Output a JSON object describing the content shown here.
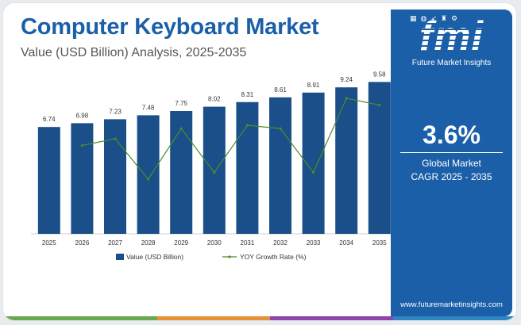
{
  "header": {
    "title": "Computer Keyboard Market",
    "subtitle": "Value (USD Billion) Analysis, 2025-2035"
  },
  "sidebar": {
    "logo_text": "fmi",
    "logo_tagline": "Future Market Insights",
    "cagr_value": "3.6%",
    "cagr_label_line1": "Global Market",
    "cagr_label_line2": "CAGR 2025 - 2035",
    "website": "www.futuremarketinsights.com"
  },
  "colors": {
    "brand": "#1a5fa8",
    "bar": "#1b4f8a",
    "line": "#4a8c2a"
  },
  "chart_data": {
    "type": "bar",
    "categories": [
      "2025",
      "2026",
      "2027",
      "2028",
      "2029",
      "2030",
      "2031",
      "2032",
      "2033",
      "2034",
      "2035"
    ],
    "series": [
      {
        "name": "Value (USD Billion)",
        "type": "bar",
        "values": [
          6.74,
          6.98,
          7.23,
          7.48,
          7.75,
          8.02,
          8.31,
          8.61,
          8.91,
          9.24,
          9.58
        ],
        "value_labels": [
          "6.74",
          "6.98",
          "7.23",
          "7.48",
          "7.75",
          "8.02",
          "8.31",
          "8.61",
          "8.91",
          "9.24",
          "9.58"
        ]
      },
      {
        "name": "YOY Growth Rate (%)",
        "type": "line",
        "values": [
          null,
          3.56,
          3.58,
          3.46,
          3.61,
          3.48,
          3.62,
          3.61,
          3.48,
          3.7,
          3.68
        ]
      }
    ],
    "ylim": [
      0,
      10
    ],
    "grid": false,
    "legend": "bottom-center"
  }
}
